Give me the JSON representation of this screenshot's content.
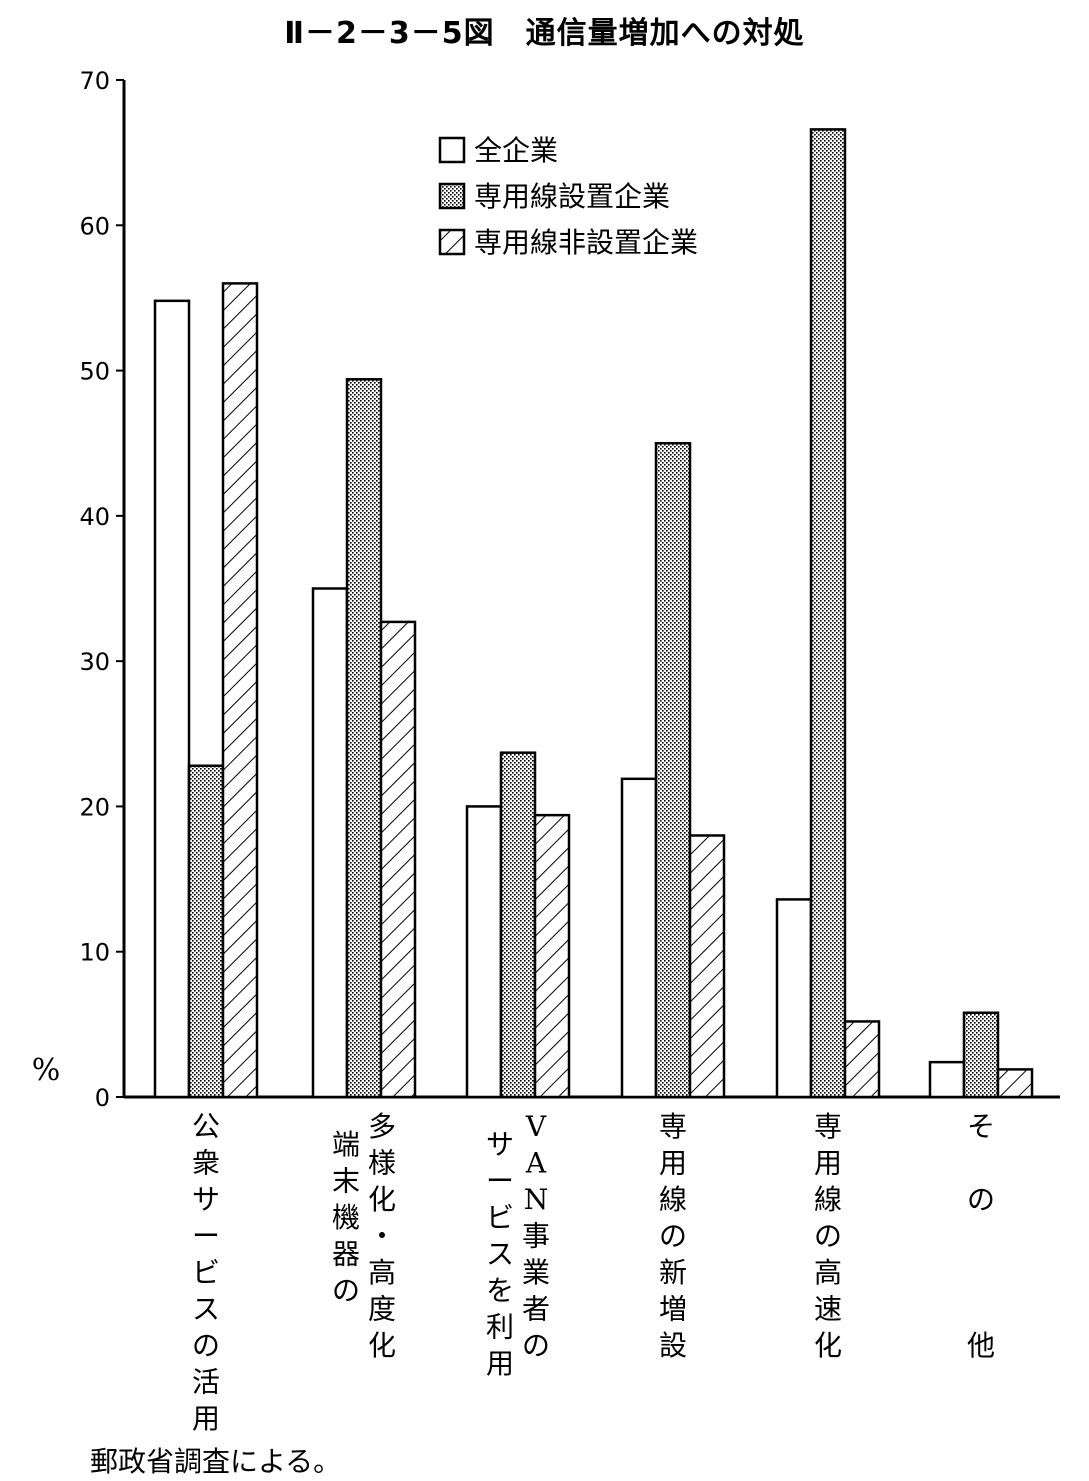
{
  "chart_data": {
    "type": "bar",
    "title": "Ⅱ－2－3－5図　通信量増加への対処",
    "ylabel": "%",
    "ylim": [
      0,
      70
    ],
    "yticks": [
      0,
      10,
      20,
      30,
      40,
      50,
      60,
      70
    ],
    "grid": false,
    "legend_position": "top-right",
    "categories": [
      "公衆サービスの活用",
      "多様化・高度化端末機器の",
      "VAN事業者のサービスを利用",
      "専用線の新増設",
      "専用線の高速化",
      "その他"
    ],
    "category_columns": [
      [
        "公衆サービスの活用"
      ],
      [
        "多様化・高度化",
        "端末機器の"
      ],
      [
        "VAN事業者の",
        "サービスを利用"
      ],
      [
        "専用線の新増設"
      ],
      [
        "専用線の高速化"
      ],
      [
        "そ",
        "の",
        "他"
      ]
    ],
    "series": [
      {
        "name": "全企業",
        "pattern": "plain",
        "values": [
          54.8,
          35.0,
          20.0,
          21.9,
          13.6,
          2.4
        ]
      },
      {
        "name": "専用線設置企業",
        "pattern": "dotted",
        "values": [
          22.8,
          49.4,
          23.7,
          45.0,
          66.6,
          5.8
        ]
      },
      {
        "name": "専用線非設置企業",
        "pattern": "hatched",
        "values": [
          56.0,
          32.7,
          19.4,
          18.0,
          5.2,
          1.9
        ]
      }
    ]
  },
  "source_note": "郵政省調査による。"
}
